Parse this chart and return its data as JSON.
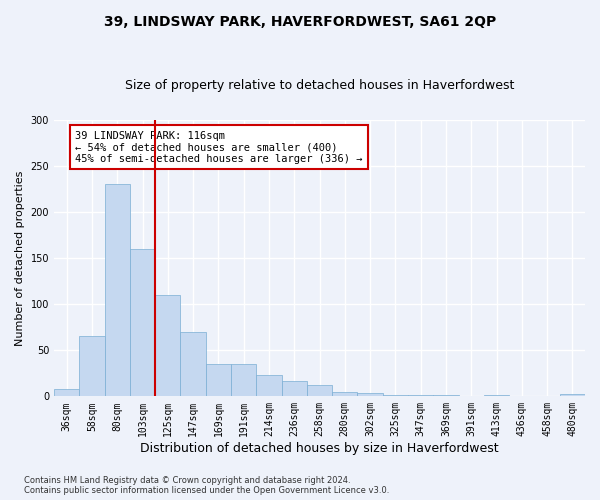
{
  "title": "39, LINDSWAY PARK, HAVERFORDWEST, SA61 2QP",
  "subtitle": "Size of property relative to detached houses in Haverfordwest",
  "xlabel": "Distribution of detached houses by size in Haverfordwest",
  "ylabel": "Number of detached properties",
  "footnote": "Contains HM Land Registry data © Crown copyright and database right 2024.\nContains public sector information licensed under the Open Government Licence v3.0.",
  "categories": [
    "36sqm",
    "58sqm",
    "80sqm",
    "103sqm",
    "125sqm",
    "147sqm",
    "169sqm",
    "191sqm",
    "214sqm",
    "236sqm",
    "258sqm",
    "280sqm",
    "302sqm",
    "325sqm",
    "347sqm",
    "369sqm",
    "391sqm",
    "413sqm",
    "436sqm",
    "458sqm",
    "480sqm"
  ],
  "values": [
    8,
    65,
    230,
    160,
    110,
    70,
    35,
    35,
    23,
    17,
    12,
    5,
    4,
    1,
    1,
    1,
    0,
    1,
    0,
    0,
    2
  ],
  "bar_color": "#c5d8f0",
  "bar_edge_color": "#7aaed4",
  "vline_color": "#cc0000",
  "vline_index": 3.5,
  "annotation_text": "39 LINDSWAY PARK: 116sqm\n← 54% of detached houses are smaller (400)\n45% of semi-detached houses are larger (336) →",
  "annotation_box_color": "#ffffff",
  "annotation_box_edge": "#cc0000",
  "ylim": [
    0,
    300
  ],
  "yticks": [
    0,
    50,
    100,
    150,
    200,
    250,
    300
  ],
  "background_color": "#eef2fa",
  "plot_background": "#eef2fa",
  "grid_color": "#ffffff",
  "title_fontsize": 10,
  "subtitle_fontsize": 9,
  "xlabel_fontsize": 9,
  "ylabel_fontsize": 8,
  "tick_fontsize": 7,
  "annot_fontsize": 7.5
}
